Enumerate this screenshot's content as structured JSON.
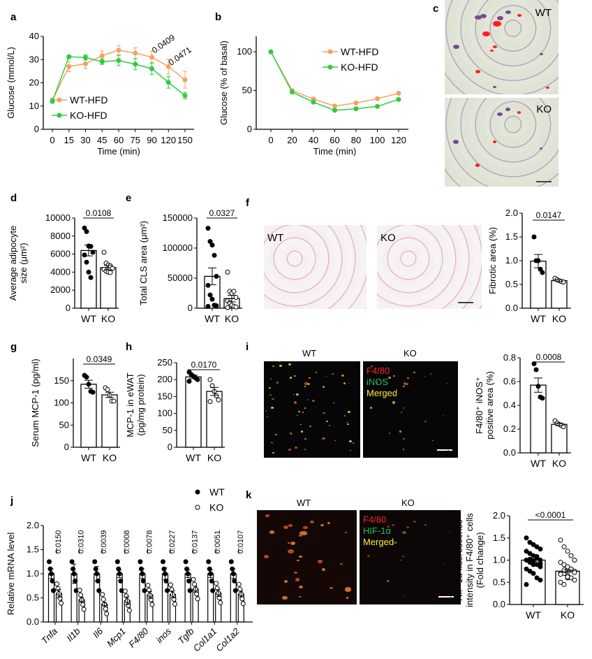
{
  "panel_letters": {
    "a": "a",
    "b": "b",
    "c": "c",
    "d": "d",
    "e": "e",
    "f": "f",
    "g": "g",
    "h": "h",
    "i": "i",
    "j": "j",
    "k": "k"
  },
  "images": {
    "c_wt_label": "WT",
    "c_ko_label": "KO",
    "f_wt_label": "WT",
    "f_ko_label": "KO",
    "i_wt_label": "WT",
    "i_ko_label": "KO",
    "i_legend": [
      "F4/80",
      "iNOS",
      "Merged"
    ],
    "k_wt_label": "WT",
    "k_ko_label": "KO",
    "k_legend": [
      "F4/80",
      "HIF-1α",
      "Merged"
    ],
    "legend_colors": [
      "#ff2020",
      "#1fc060",
      "#ffee33"
    ]
  },
  "colors": {
    "wt_line": "#f4a261",
    "ko_line": "#2ecc40",
    "bar": "#000000"
  },
  "chart_data": [
    {
      "id": "a",
      "type": "line",
      "xlabel": "Time (min)",
      "ylabel": "Glucose (mmol/L)",
      "categories": [
        "0",
        "15",
        "30",
        "45",
        "60",
        "75",
        "90",
        "120",
        "150"
      ],
      "yticks": [
        0,
        10,
        20,
        30,
        40
      ],
      "ylim": [
        0,
        40
      ],
      "legend": "bottom-left",
      "series": [
        {
          "name": "WT-HFD",
          "color": "#f4a261",
          "values": [
            12.5,
            27,
            28.2,
            31.7,
            34,
            32.8,
            31,
            27,
            21.3
          ],
          "err": [
            1,
            2.2,
            2.2,
            2,
            2,
            2.3,
            2.6,
            3.2,
            3.6
          ]
        },
        {
          "name": "KO-HFD",
          "color": "#2ecc40",
          "values": [
            12,
            31.2,
            30.9,
            29.1,
            29.6,
            28,
            26.1,
            20.2,
            14.5
          ],
          "err": [
            0.6,
            0.8,
            1.1,
            1.2,
            2.2,
            2.4,
            2.5,
            2.5,
            1.4
          ]
        }
      ],
      "annotations": [
        {
          "at": "120",
          "text": "0.0409"
        },
        {
          "at": "150",
          "text": "0.0471"
        }
      ]
    },
    {
      "id": "b",
      "type": "line",
      "xlabel": "Time (min)",
      "ylabel": "Glucose (% of basal)",
      "x": [
        0,
        20,
        40,
        60,
        80,
        100,
        120
      ],
      "yticks": [
        0,
        50,
        100
      ],
      "ylim": [
        0,
        120
      ],
      "legend": "top-right",
      "series": [
        {
          "name": "WT-HFD",
          "color": "#f4a261",
          "values": [
            100,
            50,
            39,
            30,
            34,
            39.5,
            46.5
          ]
        },
        {
          "name": "KO-HFD",
          "color": "#2ecc40",
          "values": [
            100,
            48,
            35,
            24.5,
            26.5,
            29.5,
            38.5
          ]
        }
      ]
    },
    {
      "id": "d",
      "type": "bar",
      "ylabel": "Average adipocyte size (μm²)",
      "categories": [
        "WT",
        "KO"
      ],
      "yticks": [
        0,
        2000,
        4000,
        6000,
        8000,
        10000
      ],
      "ylim": [
        0,
        10000
      ],
      "means": [
        6400,
        4500
      ],
      "sem": [
        600,
        250
      ],
      "points": [
        [
          8900,
          8500,
          6900,
          6850,
          6200,
          5900,
          5100,
          4000,
          3400
        ],
        [
          6200,
          5000,
          4800,
          4700,
          4400,
          4300,
          4100,
          4000,
          3950
        ]
      ],
      "pvalue": "0.0108"
    },
    {
      "id": "e",
      "type": "bar",
      "ylabel": "Total CLS area (μm²)",
      "categories": [
        "WT",
        "KO"
      ],
      "yticks": [
        0,
        50000,
        100000,
        150000
      ],
      "ylim": [
        0,
        150000
      ],
      "means": [
        53000,
        16000
      ],
      "sem": [
        14000,
        5500
      ],
      "points": [
        [
          133000,
          111000,
          105000,
          88000,
          53000,
          38000,
          22000,
          15000,
          5000,
          4000,
          3000
        ],
        [
          60000,
          28000,
          25000,
          28000,
          18000,
          12000,
          9000,
          5000,
          3000,
          2000,
          1000
        ]
      ],
      "pvalue": "0.0327"
    },
    {
      "id": "f",
      "type": "bar",
      "ylabel": "Fibrotic area (%)",
      "categories": [
        "WT",
        "KO"
      ],
      "yticks": [
        0,
        0.5,
        1.0,
        1.5,
        2.0
      ],
      "ylim": [
        0,
        2.0
      ],
      "means": [
        0.99,
        0.58
      ],
      "sem": [
        0.14,
        0.02
      ],
      "points": [
        [
          1.5,
          1.0,
          1.0,
          0.82,
          0.75
        ],
        [
          0.63,
          0.6,
          0.58,
          0.56,
          0.55
        ]
      ],
      "pvalue": "0.0147"
    },
    {
      "id": "g",
      "type": "bar",
      "ylabel": "Serum MCP-1 (pg/ml)",
      "categories": [
        "WT",
        "KO"
      ],
      "yticks": [
        0,
        50,
        100,
        150
      ],
      "ylim": [
        0,
        200
      ],
      "means": [
        142,
        118
      ],
      "sem": [
        9,
        6
      ],
      "points": [
        [
          162,
          158,
          142,
          126,
          124
        ],
        [
          134,
          130,
          117,
          104,
          104
        ]
      ],
      "pvalue": "0.0349"
    },
    {
      "id": "h",
      "type": "bar",
      "ylabel": "MCP-1 in eWAT (pg/mg protein)",
      "categories": [
        "WT",
        "KO"
      ],
      "yticks": [
        0,
        50,
        100,
        150,
        200,
        250
      ],
      "ylim": [
        0,
        250
      ],
      "means": [
        208,
        165
      ],
      "sem": [
        5,
        12
      ],
      "points": [
        [
          222,
          215,
          210,
          205,
          200,
          195
        ],
        [
          200,
          182,
          165,
          152,
          140,
          135
        ]
      ],
      "pvalue": "0.0170"
    },
    {
      "id": "i",
      "type": "bar",
      "ylabel": "F4/80⁺ iNOS⁺ positive area (%)",
      "categories": [
        "WT",
        "KO"
      ],
      "yticks": [
        0,
        0.2,
        0.4,
        0.6,
        0.8
      ],
      "ylim": [
        0,
        0.8
      ],
      "means": [
        0.57,
        0.24
      ],
      "sem": [
        0.06,
        0.01
      ],
      "points": [
        [
          0.75,
          0.7,
          0.56,
          0.47,
          0.46
        ],
        [
          0.27,
          0.25,
          0.24,
          0.23,
          0.22
        ]
      ],
      "pvalue": "0.0008"
    },
    {
      "id": "j",
      "type": "grouped_bar",
      "ylabel": "Relative mRNA level",
      "categories": [
        "Tnfa",
        "Il1b",
        "Il6",
        "Mcp1",
        "F4/80",
        "inos",
        "Tgfb",
        "Col1a1",
        "Col1a2"
      ],
      "yticks": [
        0,
        0.5,
        1.0,
        1.5,
        2.0
      ],
      "ylim": [
        0,
        2.0
      ],
      "legend": "top-right",
      "series": [
        {
          "name": "WT",
          "means": [
            1,
            1,
            1,
            1,
            1,
            1,
            1,
            1,
            1
          ],
          "sem": [
            0.1,
            0.2,
            0.15,
            0.08,
            0.1,
            0.12,
            0.08,
            0.08,
            0.1
          ]
        },
        {
          "name": "KO",
          "means": [
            0.59,
            0.46,
            0.37,
            0.44,
            0.56,
            0.57,
            0.68,
            0.6,
            0.58
          ],
          "sem": [
            0.08,
            0.05,
            0.03,
            0.08,
            0.07,
            0.07,
            0.06,
            0.07,
            0.06
          ]
        }
      ],
      "pvalues": [
        "0.0150",
        "0.0310",
        "0.0039",
        "0.0008",
        "0.0078",
        "0.0227",
        "0.0137",
        "0.0051",
        "0.0107"
      ]
    },
    {
      "id": "k",
      "type": "bar",
      "ylabel": "HIF-1α fluorescence intensity in F4/80⁺ cells (Fold change)",
      "categories": [
        "WT",
        "KO"
      ],
      "yticks": [
        0,
        0.5,
        1.0,
        1.5,
        2.0
      ],
      "ylim": [
        0,
        2.0
      ],
      "means": [
        1.0,
        0.75
      ],
      "sem": [
        0.03,
        0.03
      ],
      "points": [
        [
          1.5,
          1.4,
          1.35,
          1.3,
          1.25,
          1.2,
          1.15,
          1.1,
          1.05,
          1.0,
          1.0,
          0.95,
          0.9,
          0.9,
          0.85,
          0.8,
          0.75,
          0.7,
          0.6,
          0.55,
          0.45,
          1.02,
          0.98,
          1.08,
          0.92
        ],
        [
          1.45,
          1.3,
          1.2,
          1.1,
          1.0,
          0.95,
          0.9,
          0.85,
          0.8,
          0.75,
          0.7,
          0.7,
          0.65,
          0.6,
          0.55,
          0.5,
          0.45,
          0.6,
          0.8,
          0.72,
          0.68,
          0.78,
          0.62
        ]
      ],
      "pvalue": "<0.0001"
    }
  ]
}
